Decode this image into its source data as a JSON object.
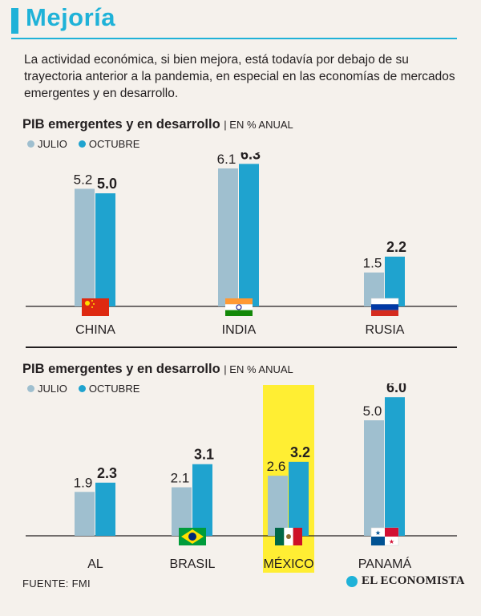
{
  "header": {
    "title": "Mejoría",
    "subtitle": "La actividad económica, si bien mejora, está todavía por debajo de su trayectoria anterior a la pandemia, en especial en las economías de mercados emergentes y en desarrollo."
  },
  "colors": {
    "accent": "#1fb2d8",
    "julio": "#9fbfcf",
    "octubre": "#1fa3cf",
    "highlight": "#ffee33"
  },
  "legend": {
    "julio": "JULIO",
    "octubre": "OCTUBRE"
  },
  "chart_data": [
    {
      "type": "bar",
      "title": "PIB emergentes y en desarrollo",
      "unit": "EN % ANUAL",
      "categories": [
        "CHINA",
        "INDIA",
        "RUSIA"
      ],
      "series": [
        {
          "name": "JULIO",
          "values": [
            5.2,
            6.1,
            1.5
          ],
          "labels": [
            "5.2",
            "6.1",
            "1.5"
          ]
        },
        {
          "name": "OCTUBRE",
          "values": [
            5.0,
            6.3,
            2.2
          ],
          "labels": [
            "5.0",
            "6.3",
            "2.2"
          ]
        }
      ],
      "flags": [
        "china-flag-icon",
        "india-flag-icon",
        "russia-flag-icon"
      ],
      "ylim": [
        0,
        7
      ]
    },
    {
      "type": "bar",
      "title": "PIB emergentes y en desarrollo",
      "unit": "EN % ANUAL",
      "categories": [
        "AL",
        "BRASIL",
        "MÉXICO",
        "PANAMÁ"
      ],
      "series": [
        {
          "name": "JULIO",
          "values": [
            1.9,
            2.1,
            2.6,
            5.0
          ],
          "labels": [
            "1.9",
            "2.1",
            "2.6",
            "5.0"
          ]
        },
        {
          "name": "OCTUBRE",
          "values": [
            2.3,
            3.1,
            3.2,
            6.0
          ],
          "labels": [
            "2.3",
            "3.1",
            "3.2",
            "6.0"
          ]
        }
      ],
      "flags": [
        "",
        "brazil-flag-icon",
        "mexico-flag-icon",
        "panama-flag-icon"
      ],
      "highlight": "MÉXICO",
      "ylim": [
        0,
        7
      ]
    }
  ],
  "footer": {
    "source": "FUENTE: FMI",
    "brand": "EL ECONOMISTA"
  }
}
